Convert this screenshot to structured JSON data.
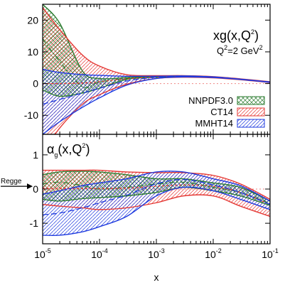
{
  "chart_data": [
    {
      "type": "area",
      "panel": "top",
      "title": "xg(x,Q²)",
      "title_main": "xg(x,Q",
      "title_sup": "2",
      "title_tail": ")",
      "subtitle_main": "Q",
      "subtitle_sup1": "2",
      "subtitle_mid": "=2 GeV",
      "subtitle_sup2": "2",
      "xscale": "log",
      "xlim": [
        1e-05,
        0.1
      ],
      "ylim": [
        -16,
        25
      ],
      "yticks": [
        {
          "value": 20,
          "label": "20"
        },
        {
          "value": 10,
          "label": "10"
        },
        {
          "value": 0,
          "label": "0"
        },
        {
          "value": -10,
          "label": "-10"
        }
      ],
      "legend_position": "right",
      "series": [
        {
          "name": "NNPDF3.0",
          "color": "#2e7d32",
          "pattern": "crosshatch",
          "x": [
            1e-05,
            2e-05,
            5e-05,
            0.0001,
            0.0003,
            0.001,
            0.003,
            0.01,
            0.03,
            0.1
          ],
          "upper": [
            25,
            19,
            4,
            1.6,
            1.9,
            2.2,
            2.4,
            2.1,
            1.4,
            0.5
          ],
          "central": [
            14,
            7,
            -1,
            0.5,
            1.6,
            2.1,
            2.3,
            2.0,
            1.35,
            0.45
          ],
          "lower": [
            -2,
            -4,
            -3,
            -1.5,
            1.3,
            2.0,
            2.2,
            1.9,
            1.3,
            0.4
          ]
        },
        {
          "name": "CT14",
          "color": "#e53935",
          "pattern": "hatch",
          "x": [
            1e-05,
            2e-05,
            5e-05,
            0.0001,
            0.0003,
            0.001,
            0.003,
            0.01,
            0.03,
            0.1
          ],
          "upper": [
            24,
            17,
            9,
            5.5,
            2.8,
            2.5,
            2.5,
            2.2,
            1.5,
            0.6
          ],
          "central": [
            0,
            0,
            0.2,
            0.6,
            1.5,
            2.1,
            2.3,
            2.0,
            1.35,
            0.45
          ],
          "lower": [
            -22,
            -14,
            -6.5,
            -3.5,
            -0.2,
            1.6,
            2.0,
            1.8,
            1.2,
            0.3
          ]
        },
        {
          "name": "MMHT14",
          "color": "#1e3adf",
          "pattern": "backhatch",
          "x": [
            1e-05,
            2e-05,
            5e-05,
            0.0001,
            0.0003,
            0.001,
            0.003,
            0.01,
            0.03,
            0.1
          ],
          "upper": [
            4.5,
            3.5,
            2.8,
            2.6,
            2.3,
            2.3,
            2.4,
            2.1,
            1.4,
            0.5
          ],
          "central": [
            -6.5,
            -5,
            -3,
            -1.5,
            0.8,
            2.0,
            2.3,
            2.0,
            1.35,
            0.45
          ],
          "lower": [
            -16,
            -12,
            -7.5,
            -4.5,
            -0.5,
            1.6,
            2.1,
            1.9,
            1.3,
            0.4
          ]
        }
      ]
    },
    {
      "type": "area",
      "panel": "bottom",
      "title": "αg(x,Q²)",
      "title_alpha": "α",
      "title_sub": "g",
      "title_mid": "(x,Q",
      "title_sup": "2",
      "title_tail": ")",
      "xscale": "log",
      "xlim": [
        1e-05,
        0.1
      ],
      "ylim": [
        -1.6,
        1.6
      ],
      "yticks": [
        {
          "value": 1,
          "label": "1"
        },
        {
          "value": 0,
          "label": "0"
        },
        {
          "value": -1,
          "label": "-1"
        }
      ],
      "xticks": [
        {
          "value": 1e-05,
          "base": "10",
          "exp": "-5"
        },
        {
          "value": 0.0001,
          "base": "10",
          "exp": "-4"
        },
        {
          "value": 0.001,
          "base": "10",
          "exp": "-3"
        },
        {
          "value": 0.01,
          "base": "10",
          "exp": "-2"
        },
        {
          "value": 0.1,
          "base": "10",
          "exp": "-1"
        }
      ],
      "xlabel": "x",
      "annotation": {
        "text": "Regge",
        "value": 0.08
      },
      "series": [
        {
          "name": "NNPDF3.0",
          "color": "#2e7d32",
          "pattern": "crosshatch",
          "x": [
            1e-05,
            2e-05,
            5e-05,
            0.0001,
            0.0003,
            0.001,
            0.003,
            0.01,
            0.03,
            0.1
          ],
          "upper": [
            0.42,
            0.5,
            0.52,
            0.5,
            0.42,
            0.3,
            0.3,
            0.18,
            0.05,
            -0.35
          ],
          "central": [
            0.15,
            0.2,
            0.1,
            0.0,
            0.05,
            0.15,
            0.2,
            0.05,
            -0.1,
            -0.42
          ],
          "lower": [
            -0.3,
            -0.35,
            -0.28,
            -0.25,
            -0.2,
            -0.1,
            0.05,
            -0.05,
            -0.2,
            -0.48
          ]
        },
        {
          "name": "CT14",
          "color": "#e53935",
          "pattern": "hatch",
          "x": [
            1e-05,
            2e-05,
            5e-05,
            0.0001,
            0.0003,
            0.001,
            0.003,
            0.01,
            0.03,
            0.1
          ],
          "upper": [
            0.55,
            0.55,
            0.55,
            0.55,
            0.5,
            0.48,
            0.48,
            0.4,
            0.15,
            -0.3
          ],
          "central": [
            0.02,
            0.02,
            0.02,
            0.02,
            0.03,
            0.08,
            0.12,
            0.08,
            -0.1,
            -0.45
          ],
          "lower": [
            -0.45,
            -0.5,
            -0.55,
            -0.6,
            -0.55,
            -0.4,
            -0.2,
            -0.2,
            -0.5,
            -0.8
          ]
        },
        {
          "name": "MMHT14",
          "color": "#1e3adf",
          "pattern": "backhatch",
          "x": [
            1e-05,
            2e-05,
            5e-05,
            0.0001,
            0.0003,
            0.001,
            0.003,
            0.01,
            0.03,
            0.1
          ],
          "upper": [
            -0.15,
            -0.05,
            0.1,
            0.18,
            0.3,
            0.5,
            0.5,
            0.3,
            0.1,
            -0.35
          ],
          "central": [
            -0.75,
            -0.7,
            -0.55,
            -0.4,
            -0.18,
            0.15,
            0.28,
            0.12,
            -0.1,
            -0.45
          ],
          "lower": [
            -1.35,
            -1.35,
            -1.25,
            -1.1,
            -0.8,
            -0.2,
            0.05,
            -0.05,
            -0.3,
            -0.6
          ]
        }
      ]
    }
  ]
}
